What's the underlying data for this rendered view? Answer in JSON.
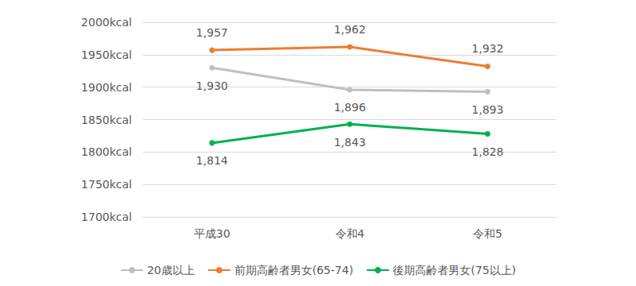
{
  "chart_data": {
    "type": "line",
    "categories": [
      "平成30",
      "令和4",
      "令和5"
    ],
    "series": [
      {
        "name": "20歳以上",
        "color": "#bfbfbf",
        "marker": "circle",
        "values": [
          1930,
          1896,
          1893
        ],
        "value_labels": [
          "1,930",
          "1,896",
          "1,893"
        ]
      },
      {
        "name": "前期高齢者男女(65-74)",
        "color": "#ed7d31",
        "marker": "circle",
        "values": [
          1957,
          1962,
          1932
        ],
        "value_labels": [
          "1,957",
          "1,962",
          "1,932"
        ]
      },
      {
        "name": "後期高齢者男女(75以上)",
        "color": "#00b050",
        "marker": "circle",
        "values": [
          1814,
          1843,
          1828
        ],
        "value_labels": [
          "1,814",
          "1,843",
          "1,828"
        ]
      }
    ],
    "ylim": [
      1700,
      2000
    ],
    "yticks": [
      {
        "value": 1700,
        "label": "1700kcal"
      },
      {
        "value": 1750,
        "label": "1750kcal"
      },
      {
        "value": 1800,
        "label": "1800kcal"
      },
      {
        "value": 1850,
        "label": "1850kcal"
      },
      {
        "value": 1900,
        "label": "1900kcal"
      },
      {
        "value": 1950,
        "label": "1950kcal"
      },
      {
        "value": 2000,
        "label": "2000kcal"
      }
    ],
    "grid": true,
    "legend": "bottom",
    "data_labels": true
  }
}
